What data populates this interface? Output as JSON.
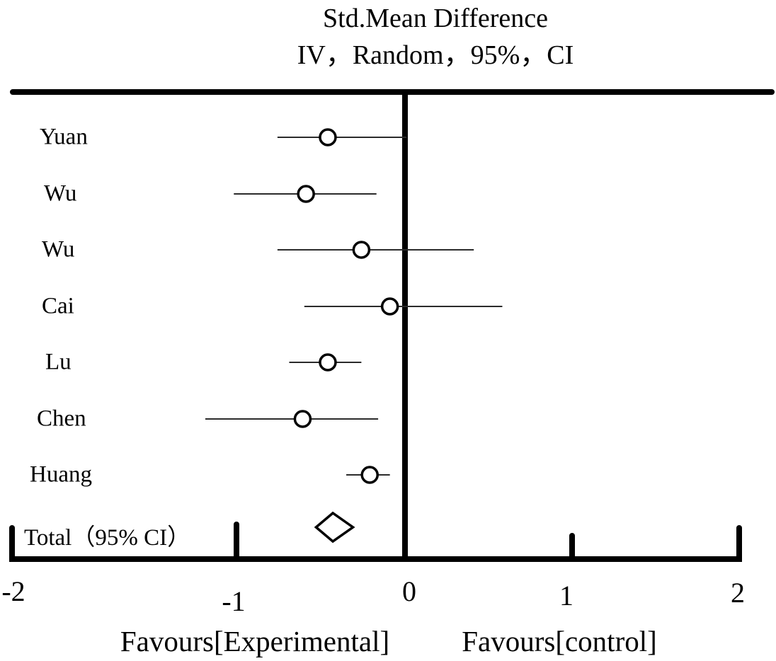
{
  "title": {
    "line1": "Std.Mean Difference",
    "line2": "IV，Random，95%，CI"
  },
  "chart_data": {
    "type": "forest",
    "effect_measure": "Std. Mean Difference, IV, Random, 95% CI",
    "studies": [
      {
        "label": "Yuan",
        "est": -0.46,
        "ci_low": -0.76,
        "ci_high": 0.01
      },
      {
        "label": "Wu",
        "est": -0.59,
        "ci_low": -1.02,
        "ci_high": -0.17
      },
      {
        "label": "Wu",
        "est": -0.26,
        "ci_low": -0.76,
        "ci_high": 0.41
      },
      {
        "label": "Cai",
        "est": -0.09,
        "ci_low": -0.6,
        "ci_high": 0.58
      },
      {
        "label": "Lu",
        "est": -0.46,
        "ci_low": -0.69,
        "ci_high": -0.26
      },
      {
        "label": "Chen",
        "est": -0.61,
        "ci_low": -1.19,
        "ci_high": -0.16
      },
      {
        "label": "Huang",
        "est": -0.21,
        "ci_low": -0.35,
        "ci_high": -0.09
      }
    ],
    "total": {
      "label": "Total（95% CI）",
      "est": -0.43,
      "ci_low": -0.53,
      "ci_high": -0.31
    },
    "axis": {
      "min": -2,
      "max": 2,
      "tick_values": [
        -2,
        -1,
        0,
        1,
        2
      ],
      "tick_labels": [
        "-2",
        "-1",
        "0",
        "1",
        "2"
      ],
      "zero_line": 0,
      "grid": false
    },
    "footer": {
      "left": "Favours[Experimental]",
      "right": "Favours[control]"
    }
  },
  "colors": {
    "ink": "#000000",
    "ci_line": "#2b2b2b",
    "marker_fill": "#ffffff",
    "background": "#ffffff"
  }
}
